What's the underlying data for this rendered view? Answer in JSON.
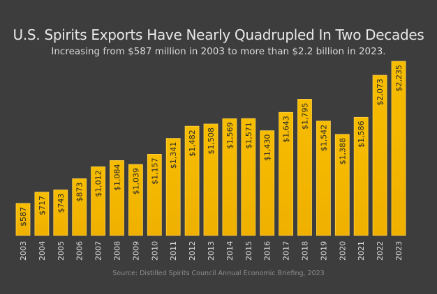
{
  "chart_data": {
    "type": "bar",
    "title": "U.S. Spirits Exports Have Nearly Quadrupled In Two Decades",
    "subtitle": "Increasing from $587 million in 2003 to more than $2.2 billion in 2023.",
    "source": "Source: Distilled Spirits Council Annual Economic Briefing, 2023",
    "xlabel": "",
    "ylabel": "",
    "unit": "millions of US dollars",
    "categories": [
      "2003",
      "2004",
      "2005",
      "2006",
      "2007",
      "2008",
      "2009",
      "2010",
      "2011",
      "2012",
      "2013",
      "2014",
      "2015",
      "2016",
      "2017",
      "2018",
      "2019",
      "2020",
      "2021",
      "2022",
      "2023"
    ],
    "values": [
      587,
      717,
      743,
      873,
      1012,
      1084,
      1039,
      1157,
      1341,
      1482,
      1508,
      1569,
      1571,
      1430,
      1643,
      1795,
      1542,
      1388,
      1586,
      2073,
      2235
    ],
    "labels": [
      "$587",
      "$717",
      "$743",
      "$873",
      "$1,012",
      "$1,084",
      "$1,039",
      "$1,157",
      "$1,341",
      "$1,482",
      "$1,508",
      "$1,569",
      "$1,571",
      "$1,430",
      "$1,643",
      "$1,795",
      "$1,542",
      "$1,388",
      "$1,586",
      "$2,073",
      "$2,235"
    ],
    "ylim": [
      215,
      2235
    ],
    "grid": false,
    "legend": "none",
    "colors": {
      "bar": "#f5b800",
      "bar_edge": "#ffd24a",
      "label": "#2b2b2b",
      "tick": "#dcdcdc",
      "background": "#3d3d3d"
    }
  }
}
